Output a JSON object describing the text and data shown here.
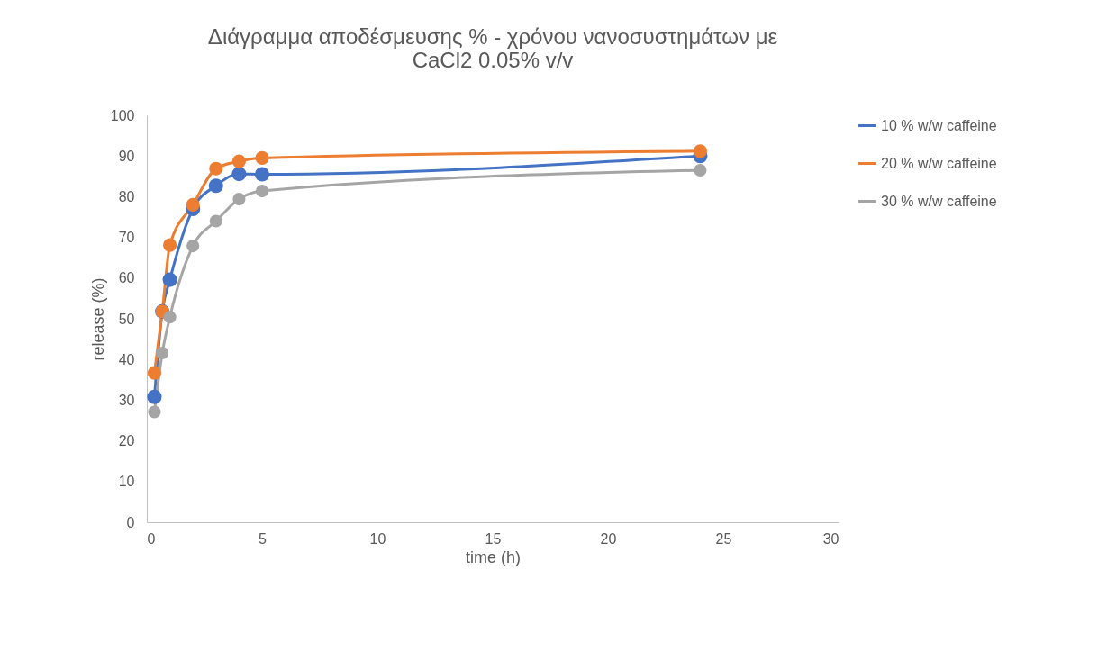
{
  "chart_data": {
    "type": "line",
    "title": [
      "Διάγραμμα αποδέσμευσης % - χρόνου νανοσυστημάτων με",
      "CaCl2 0.05% v/v"
    ],
    "xlabel": "time (h)",
    "ylabel": "release (%)",
    "x": [
      0.33,
      0.67,
      1,
      2,
      3,
      4,
      5,
      24
    ],
    "series": [
      {
        "name": "10 % w/w caffeine",
        "color": "#4472c4",
        "values": [
          30.8,
          51.8,
          59.6,
          77.0,
          82.7,
          85.6,
          85.5,
          90.0
        ]
      },
      {
        "name": "20 % w/w caffeine",
        "color": "#ed7d31",
        "values": [
          36.7,
          51.8,
          68.1,
          78.0,
          86.9,
          88.7,
          89.5,
          91.2
        ]
      },
      {
        "name": "30 % w/w caffeine",
        "color": "#a5a5a5",
        "values": [
          27.1,
          41.6,
          50.4,
          67.9,
          74.0,
          79.4,
          81.4,
          86.5
        ]
      }
    ],
    "xlim": [
      0,
      30
    ],
    "xticks": [
      0,
      5,
      10,
      15,
      20,
      25,
      30
    ],
    "ylim": [
      0,
      100
    ],
    "yticks": [
      0,
      10,
      20,
      30,
      40,
      50,
      60,
      70,
      80,
      90,
      100
    ],
    "grid": false,
    "legend": "right",
    "marker": "circle",
    "line_style": "solid"
  }
}
